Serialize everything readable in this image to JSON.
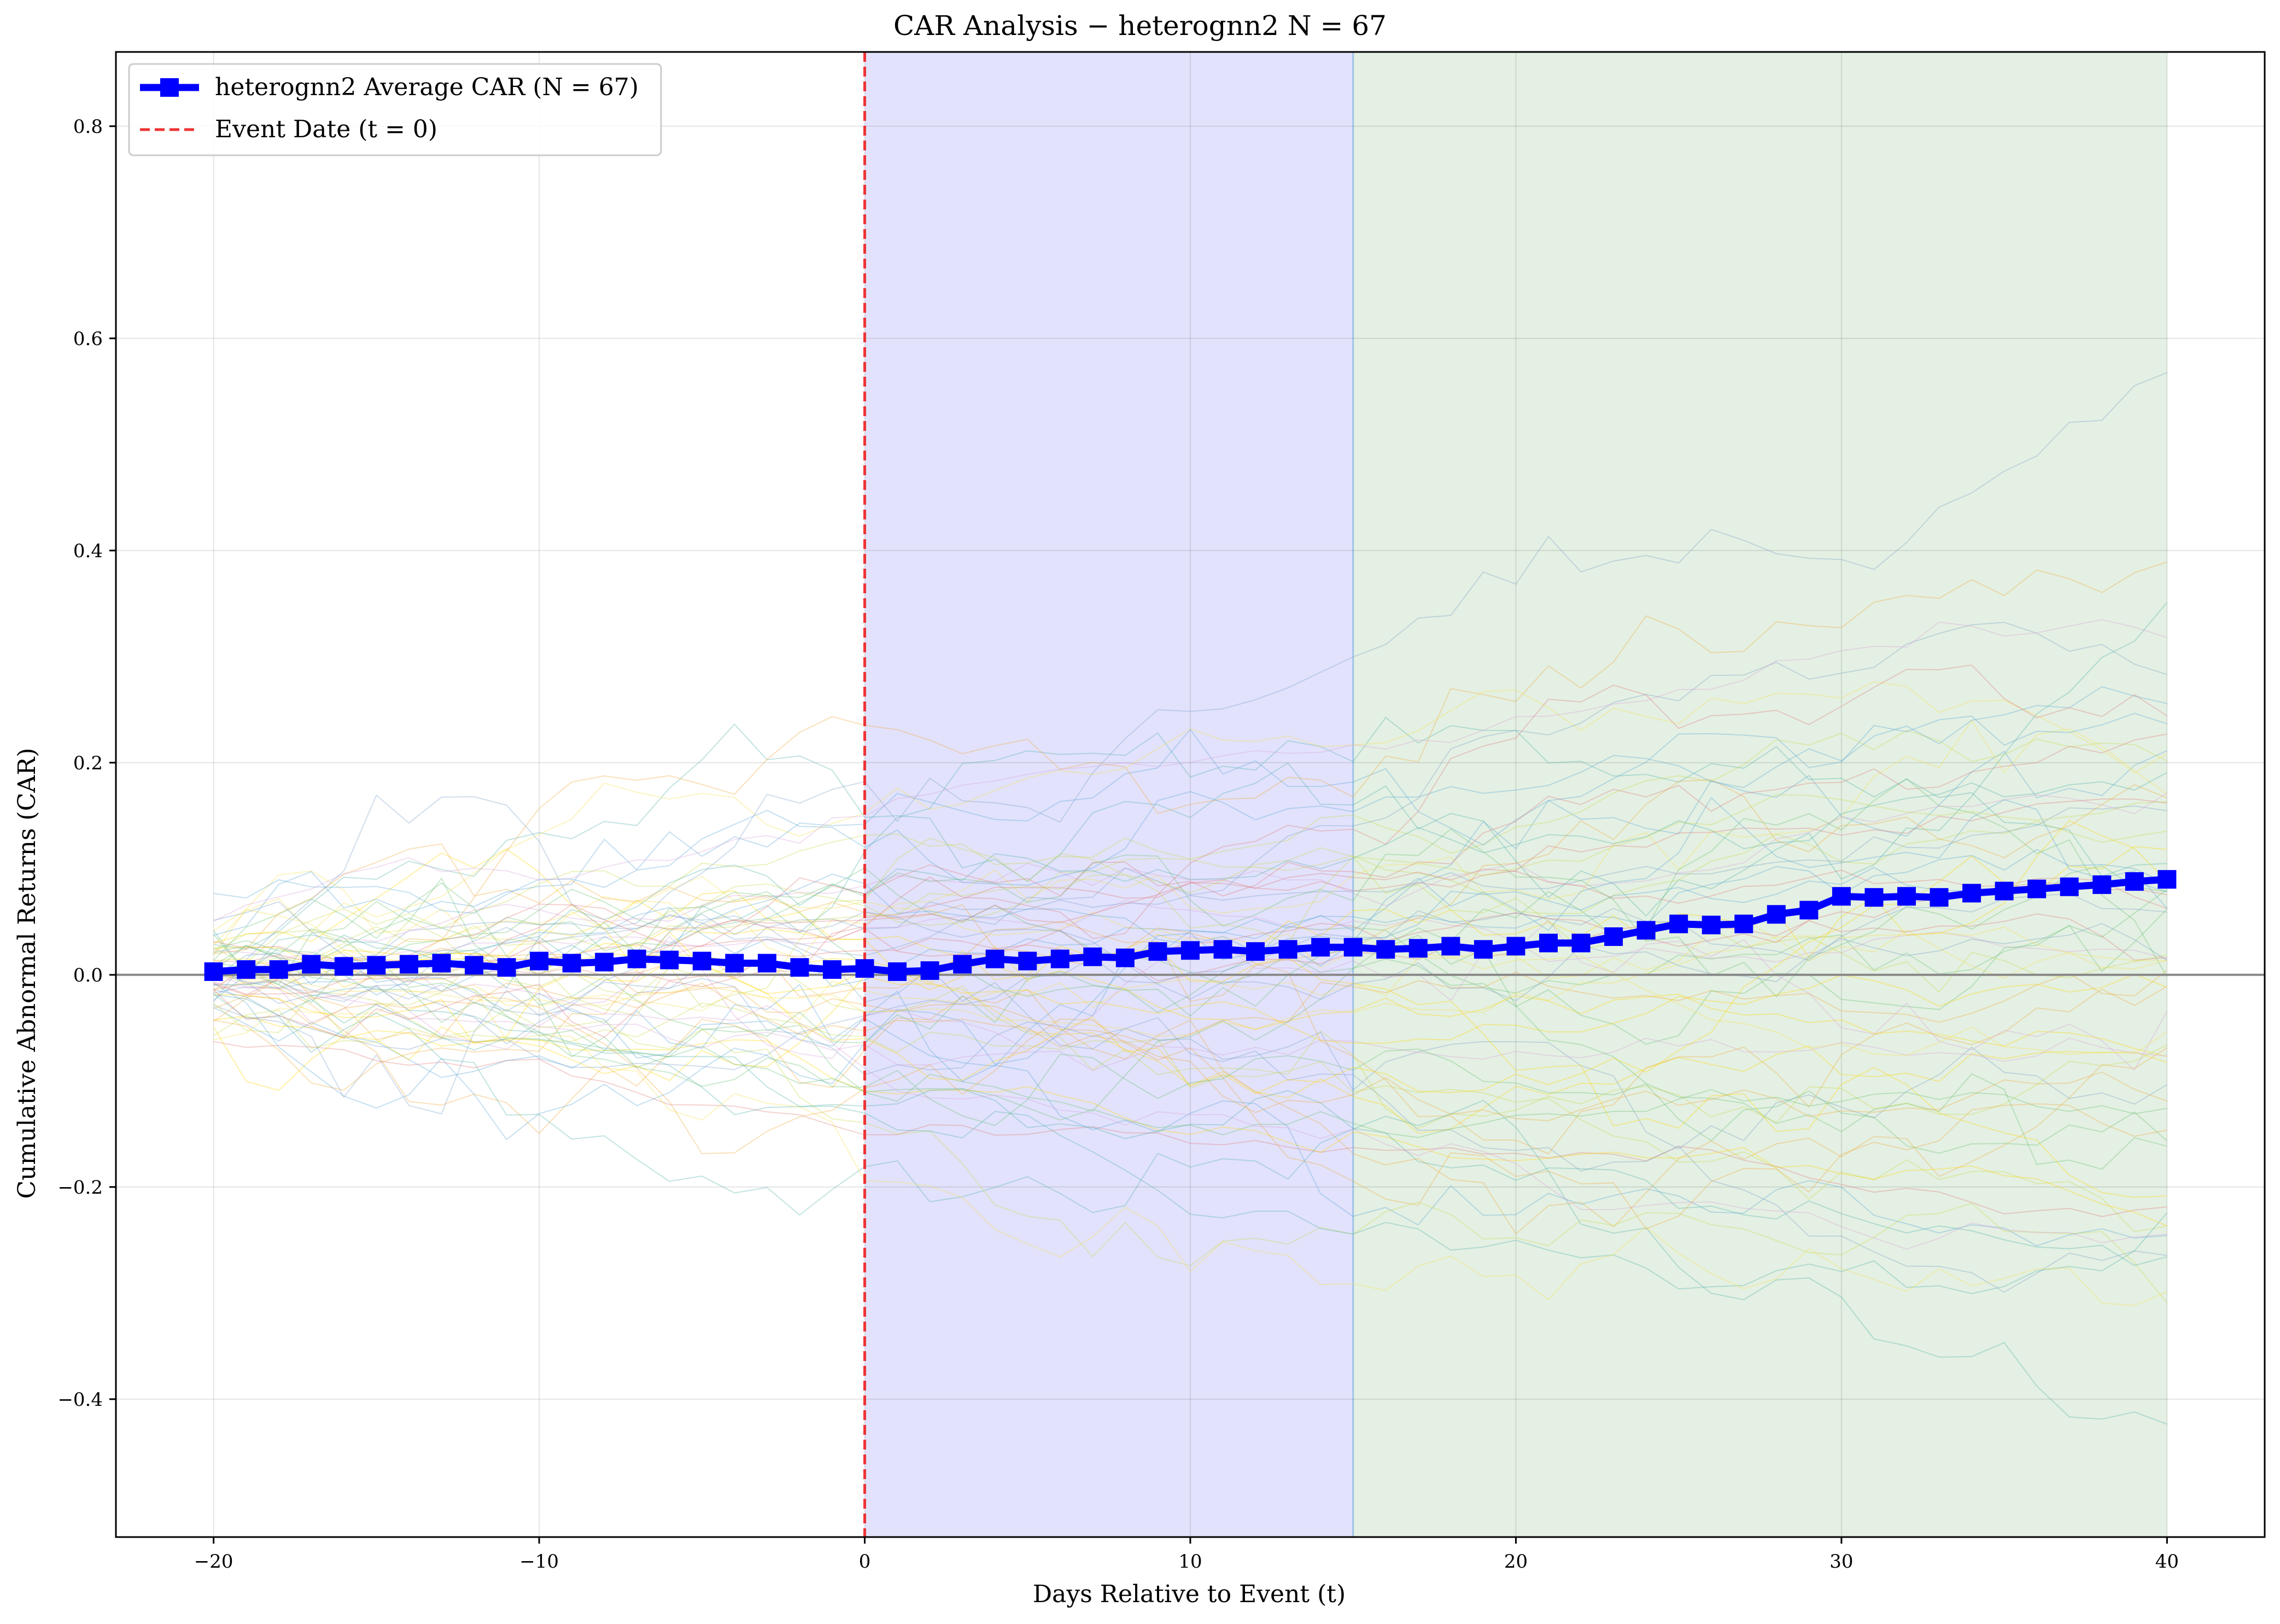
{
  "chart_data": {
    "type": "line",
    "title": "CAR Analysis − heterognn2    N = 67",
    "xlabel": "Days Relative to Event (t)",
    "ylabel": "Cumulative Abnormal Returns (CAR)",
    "xlim": [
      -23,
      43
    ],
    "ylim": [
      -0.53,
      0.87
    ],
    "xticks": [
      -20,
      -10,
      0,
      10,
      20,
      30,
      40
    ],
    "xtick_labels": [
      "−20",
      "−10",
      "0",
      "10",
      "20",
      "30",
      "40"
    ],
    "yticks": [
      -0.4,
      -0.2,
      0.0,
      0.2,
      0.4,
      0.6,
      0.8
    ],
    "ytick_labels": [
      "−0.4",
      "−0.2",
      "0.0",
      "0.2",
      "0.4",
      "0.6",
      "0.8"
    ],
    "grid": true,
    "legend_position": "top-left",
    "shaded_regions": [
      {
        "x_start": 0,
        "x_end": 15,
        "color": "#e2e2fc"
      },
      {
        "x_start": 15,
        "x_end": 40,
        "color": "#e4f0e3"
      }
    ],
    "zero_line": {
      "y": 0,
      "color": "#888888"
    },
    "event_line": {
      "x": 0,
      "color": "#ee3333",
      "label": "Event Date    (t = 0)"
    },
    "series": [
      {
        "name": "heterognn2 Average CAR    (N = 67)",
        "color": "#0000ff",
        "marker": "square",
        "x": [
          -20,
          -19,
          -18,
          -17,
          -16,
          -15,
          -14,
          -13,
          -12,
          -11,
          -10,
          -9,
          -8,
          -7,
          -6,
          -5,
          -4,
          -3,
          -2,
          -1,
          0,
          1,
          2,
          3,
          4,
          5,
          6,
          7,
          8,
          9,
          10,
          11,
          12,
          13,
          14,
          15,
          16,
          17,
          18,
          19,
          20,
          21,
          22,
          23,
          24,
          25,
          26,
          27,
          28,
          29,
          30,
          31,
          32,
          33,
          34,
          35,
          36,
          37,
          38,
          39,
          40
        ],
        "values": [
          0.003,
          0.005,
          0.005,
          0.01,
          0.008,
          0.009,
          0.01,
          0.011,
          0.009,
          0.007,
          0.013,
          0.011,
          0.012,
          0.015,
          0.014,
          0.013,
          0.011,
          0.011,
          0.007,
          0.005,
          0.006,
          0.003,
          0.004,
          0.01,
          0.015,
          0.013,
          0.015,
          0.017,
          0.016,
          0.022,
          0.023,
          0.024,
          0.022,
          0.024,
          0.026,
          0.026,
          0.024,
          0.025,
          0.027,
          0.024,
          0.027,
          0.03,
          0.03,
          0.036,
          0.042,
          0.048,
          0.047,
          0.048,
          0.057,
          0.061,
          0.074,
          0.073,
          0.074,
          0.073,
          0.077,
          0.079,
          0.081,
          0.083,
          0.085,
          0.088,
          0.09
        ]
      }
    ]
  }
}
